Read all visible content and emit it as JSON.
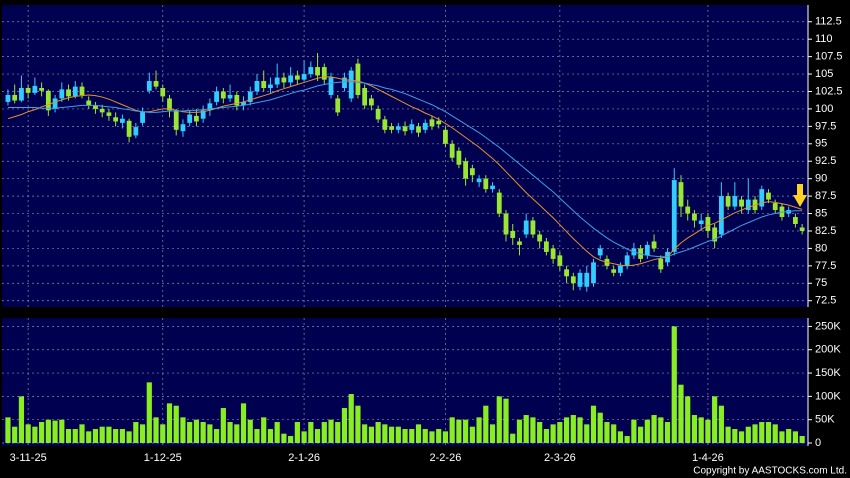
{
  "chart_data": [
    {
      "type": "candlestick",
      "open": [
        101.0,
        102.0,
        101.2,
        103.0,
        102.3,
        103.0,
        102.6,
        100.0,
        101.5,
        102.8,
        101.8,
        103.2,
        101.2,
        100.5,
        100.0,
        99.5,
        98.8,
        98.0,
        98.3,
        96.2,
        98.0,
        102.6,
        104.0,
        103.0,
        101.5,
        99.8,
        96.8,
        98.0,
        99.0,
        98.6,
        99.8,
        101.0,
        102.5,
        101.5,
        102.0,
        100.5,
        101.0,
        102.5,
        104.0,
        103.0,
        103.5,
        104.5,
        103.8,
        104.8,
        104.2,
        105.0,
        106.0,
        106.0,
        102.0,
        101.5,
        103.0,
        101.5,
        106.5,
        103.0,
        101.5,
        100.0,
        98.5,
        97.5,
        97.0,
        97.5,
        97.0,
        97.5,
        97.0,
        98.5,
        98.3,
        97.0,
        95.0,
        94.0,
        92.5,
        91.5,
        89.5,
        90.0,
        88.5,
        88.0,
        85.0,
        82.5,
        81.0,
        82.0,
        84.0,
        82.0,
        81.0,
        80.0,
        79.0,
        77.0,
        76.0,
        74.5,
        74.5,
        75.0,
        79.0,
        78.5,
        77.0,
        76.5,
        77.5,
        79.0,
        80.0,
        79.0,
        81.0,
        78.5,
        78.0,
        79.5,
        89.5,
        86.0,
        85.0,
        83.5,
        84.5,
        83.0,
        82.0,
        87.5,
        86.0,
        87.0,
        85.5,
        87.0,
        86.0,
        88.0,
        86.5,
        86.0,
        85.0,
        84.5,
        83.0
      ],
      "high": [
        102.8,
        103.5,
        104.8,
        103.5,
        104.5,
        103.8,
        102.8,
        102.0,
        103.8,
        103.5,
        104.0,
        103.8,
        101.8,
        101.0,
        100.6,
        100.0,
        99.5,
        99.2,
        98.6,
        98.0,
        100.2,
        105.2,
        105.5,
        103.5,
        102.0,
        100.0,
        98.5,
        99.8,
        100.0,
        100.5,
        101.5,
        103.2,
        103.0,
        103.5,
        102.5,
        101.8,
        103.2,
        105.0,
        105.5,
        104.5,
        106.5,
        105.2,
        106.0,
        105.5,
        107.0,
        106.8,
        108.0,
        106.5,
        105.2,
        102.0,
        105.2,
        106.0,
        107.2,
        103.5,
        102.0,
        100.5,
        99.0,
        98.0,
        98.0,
        98.2,
        98.5,
        98.0,
        98.5,
        99.0,
        98.8,
        97.5,
        95.5,
        94.5,
        93.0,
        92.0,
        90.5,
        90.5,
        89.5,
        88.5,
        85.5,
        83.5,
        81.5,
        85.0,
        84.5,
        82.5,
        81.5,
        80.5,
        79.5,
        77.5,
        76.5,
        77.0,
        77.5,
        78.5,
        80.5,
        79.0,
        77.5,
        78.0,
        79.5,
        80.8,
        80.5,
        81.0,
        82.0,
        79.0,
        80.0,
        91.5,
        90.5,
        87.0,
        85.5,
        85.0,
        85.0,
        83.5,
        89.5,
        88.0,
        89.5,
        87.5,
        90.0,
        87.5,
        89.0,
        88.5,
        87.0,
        86.5,
        86.0,
        85.0,
        83.5
      ],
      "low": [
        100.5,
        100.8,
        101.0,
        101.5,
        102.0,
        101.8,
        99.0,
        99.5,
        101.0,
        101.2,
        101.5,
        101.5,
        100.0,
        99.3,
        98.8,
        98.3,
        97.5,
        97.2,
        95.2,
        95.8,
        97.6,
        102.2,
        102.8,
        101.0,
        98.8,
        96.2,
        96.0,
        97.5,
        97.5,
        98.0,
        99.0,
        100.5,
        100.8,
        101.0,
        99.8,
        99.8,
        100.5,
        102.0,
        102.5,
        102.2,
        103.0,
        103.0,
        103.2,
        103.5,
        104.0,
        104.5,
        104.0,
        103.5,
        101.5,
        99.0,
        102.5,
        101.0,
        101.5,
        100.0,
        99.8,
        98.0,
        96.5,
        96.5,
        96.5,
        96.2,
        96.5,
        96.0,
        96.5,
        97.0,
        97.2,
        94.5,
        92.5,
        91.5,
        89.0,
        89.5,
        88.8,
        88.0,
        88.0,
        84.5,
        81.0,
        80.5,
        79.0,
        81.5,
        81.5,
        80.0,
        79.0,
        77.8,
        76.8,
        75.0,
        74.0,
        74.0,
        73.8,
        74.5,
        78.5,
        77.0,
        76.0,
        76.0,
        77.0,
        78.5,
        78.0,
        78.5,
        79.5,
        76.5,
        77.5,
        79.0,
        84.5,
        84.0,
        83.0,
        82.5,
        81.5,
        80.0,
        81.5,
        85.5,
        85.5,
        85.0,
        85.0,
        85.0,
        85.5,
        86.5,
        85.0,
        84.0,
        84.5,
        83.0,
        82.0
      ],
      "close": [
        102.0,
        101.2,
        103.0,
        102.3,
        103.3,
        102.6,
        99.8,
        101.5,
        102.8,
        101.8,
        103.2,
        102.0,
        100.5,
        100.0,
        99.5,
        99.0,
        98.2,
        98.6,
        96.0,
        97.4,
        99.6,
        104.0,
        103.2,
        101.8,
        99.8,
        97.0,
        97.8,
        99.2,
        98.2,
        99.8,
        100.8,
        102.5,
        101.5,
        102.0,
        100.5,
        101.0,
        102.5,
        104.0,
        103.0,
        103.5,
        104.5,
        103.8,
        104.8,
        104.2,
        105.0,
        106.0,
        104.8,
        104.2,
        104.5,
        99.5,
        104.5,
        105.5,
        102.0,
        100.5,
        100.5,
        98.5,
        97.0,
        97.0,
        97.5,
        96.8,
        97.8,
        96.6,
        98.0,
        97.5,
        97.8,
        95.0,
        93.0,
        92.0,
        90.0,
        90.5,
        90.0,
        88.5,
        89.0,
        85.0,
        82.0,
        81.5,
        80.5,
        84.0,
        82.0,
        81.0,
        79.5,
        78.5,
        77.5,
        76.0,
        75.0,
        76.5,
        76.5,
        78.0,
        80.0,
        77.5,
        76.5,
        77.5,
        79.0,
        80.0,
        78.5,
        80.5,
        80.0,
        77.0,
        79.5,
        89.8,
        86.0,
        85.0,
        84.0,
        84.0,
        82.5,
        81.0,
        87.5,
        86.0,
        87.5,
        86.0,
        87.0,
        85.5,
        88.5,
        87.0,
        85.5,
        84.5,
        85.5,
        83.5,
        82.5
      ],
      "up_color": "#33ccff",
      "down_color": "#99e633",
      "series": [
        {
          "color": "#e8902b",
          "values": [
            98.6,
            98.9,
            99.2,
            99.6,
            99.9,
            100.3,
            100.6,
            101.0,
            101.3,
            101.6,
            101.8,
            101.9,
            102.0,
            101.9,
            101.7,
            101.4,
            101.0,
            100.6,
            100.2,
            99.8,
            99.6,
            99.6,
            99.8,
            100.0,
            100.0,
            99.8,
            99.6,
            99.5,
            99.5,
            99.6,
            99.8,
            100.1,
            100.4,
            100.6,
            100.8,
            101.0,
            101.3,
            101.6,
            101.9,
            102.2,
            102.6,
            102.9,
            103.2,
            103.5,
            103.8,
            104.1,
            104.4,
            104.6,
            104.6,
            104.4,
            104.2,
            104.1,
            104.0,
            103.7,
            103.3,
            102.8,
            102.3,
            101.8,
            101.3,
            100.8,
            100.3,
            99.9,
            99.4,
            99.0,
            98.5,
            97.9,
            97.3,
            96.6,
            95.9,
            95.2,
            94.5,
            93.7,
            92.9,
            92.0,
            91.0,
            90.0,
            89.0,
            88.0,
            87.1,
            86.2,
            85.3,
            84.4,
            83.4,
            82.4,
            81.4,
            80.5,
            79.6,
            78.8,
            78.3,
            78.0,
            77.8,
            77.6,
            77.5,
            77.6,
            77.8,
            78.1,
            78.4,
            78.6,
            78.8,
            79.9,
            80.8,
            81.5,
            82.1,
            82.7,
            83.3,
            83.6,
            84.1,
            84.6,
            85.1,
            85.5,
            85.9,
            86.2,
            86.5,
            86.7,
            86.6,
            86.4,
            86.2,
            85.9,
            85.6
          ]
        },
        {
          "color": "#3aa0e8",
          "values": [
            100.2,
            100.2,
            100.2,
            100.2,
            100.2,
            100.1,
            100.1,
            100.1,
            100.2,
            100.3,
            100.4,
            100.5,
            100.5,
            100.5,
            100.4,
            100.3,
            100.2,
            100.0,
            99.9,
            99.7,
            99.6,
            99.5,
            99.5,
            99.6,
            99.7,
            99.7,
            99.7,
            99.8,
            99.8,
            99.9,
            100.0,
            100.1,
            100.2,
            100.3,
            100.4,
            100.5,
            100.7,
            100.9,
            101.1,
            101.3,
            101.6,
            101.9,
            102.2,
            102.5,
            102.7,
            103.0,
            103.3,
            103.5,
            103.7,
            103.8,
            103.9,
            103.9,
            103.8,
            103.7,
            103.5,
            103.3,
            103.0,
            102.8,
            102.5,
            102.2,
            101.8,
            101.4,
            101.0,
            100.6,
            100.1,
            99.6,
            99.0,
            98.4,
            97.8,
            97.2,
            96.6,
            95.9,
            95.2,
            94.5,
            93.7,
            92.9,
            92.1,
            91.3,
            90.5,
            89.7,
            88.9,
            88.1,
            87.2,
            86.3,
            85.4,
            84.5,
            83.7,
            82.9,
            82.2,
            81.5,
            80.9,
            80.4,
            79.9,
            79.5,
            79.2,
            79.0,
            78.9,
            78.8,
            78.8,
            79.2,
            79.5,
            79.8,
            80.2,
            80.6,
            81.0,
            81.3,
            81.8,
            82.3,
            82.8,
            83.3,
            83.7,
            84.1,
            84.5,
            84.8,
            85.0,
            85.2,
            85.3,
            85.4,
            85.4
          ]
        }
      ],
      "ylim": [
        71.6,
        114.9
      ],
      "yticks": [
        72.5,
        75,
        77.5,
        80,
        82.5,
        85,
        87.5,
        90,
        92.5,
        95,
        97.5,
        100,
        102.5,
        105,
        107.5,
        110,
        112.5
      ],
      "grid": true
    },
    {
      "type": "bar",
      "categories": [
        null,
        null,
        null,
        "3-11-25",
        null,
        null,
        null,
        null,
        null,
        null,
        null,
        null,
        null,
        null,
        null,
        null,
        null,
        null,
        null,
        null,
        null,
        null,
        null,
        "1-12-25",
        null,
        null,
        null,
        null,
        null,
        null,
        null,
        null,
        null,
        null,
        null,
        null,
        null,
        null,
        null,
        null,
        null,
        null,
        null,
        null,
        "2-1-26",
        null,
        null,
        null,
        null,
        null,
        null,
        null,
        null,
        null,
        null,
        null,
        null,
        null,
        null,
        null,
        null,
        null,
        null,
        null,
        null,
        "2-2-26",
        null,
        null,
        null,
        null,
        null,
        null,
        null,
        null,
        null,
        null,
        null,
        null,
        null,
        null,
        null,
        null,
        "2-3-26",
        null,
        null,
        null,
        null,
        null,
        null,
        null,
        null,
        null,
        null,
        null,
        null,
        null,
        null,
        null,
        null,
        null,
        null,
        null,
        null,
        null,
        "1-4-26",
        null,
        null,
        null,
        null,
        null,
        null,
        null,
        null,
        null,
        null,
        null,
        null,
        null,
        null
      ],
      "values": [
        55000,
        35000,
        100000,
        40000,
        35000,
        45000,
        50000,
        48000,
        50000,
        30000,
        30000,
        40000,
        25000,
        30000,
        35000,
        35000,
        30000,
        30000,
        25000,
        45000,
        40000,
        130000,
        55000,
        40000,
        85000,
        80000,
        55000,
        45000,
        50000,
        45000,
        40000,
        30000,
        75000,
        45000,
        40000,
        85000,
        50000,
        30000,
        55000,
        30000,
        45000,
        20000,
        15000,
        45000,
        25000,
        45000,
        30000,
        45000,
        50000,
        45000,
        75000,
        105000,
        80000,
        40000,
        35000,
        45000,
        40000,
        35000,
        35000,
        30000,
        30000,
        40000,
        30000,
        25000,
        30000,
        25000,
        55000,
        50000,
        50000,
        35000,
        55000,
        80000,
        40000,
        100000,
        95000,
        20000,
        50000,
        60000,
        55000,
        45000,
        30000,
        40000,
        45000,
        55000,
        60000,
        55000,
        40000,
        80000,
        65000,
        45000,
        40000,
        25000,
        15000,
        50000,
        35000,
        50000,
        60000,
        55000,
        45000,
        250000,
        125000,
        100000,
        60000,
        55000,
        50000,
        100000,
        80000,
        35000,
        30000,
        25000,
        35000,
        40000,
        45000,
        45000,
        40000,
        25000,
        30000,
        25000,
        15000
      ],
      "color": "#88ee22",
      "ylim": [
        -6400,
        268000
      ],
      "yticks": [
        0,
        {
          "value": 50000,
          "label": "50K"
        },
        {
          "value": 100000,
          "label": "100K"
        },
        {
          "value": 150000,
          "label": "150K"
        },
        {
          "value": 200000,
          "label": "200K"
        },
        {
          "value": 250000,
          "label": "250K"
        }
      ],
      "grid": true
    }
  ],
  "footer": "Copyright by AASTOCKS.com Ltd."
}
